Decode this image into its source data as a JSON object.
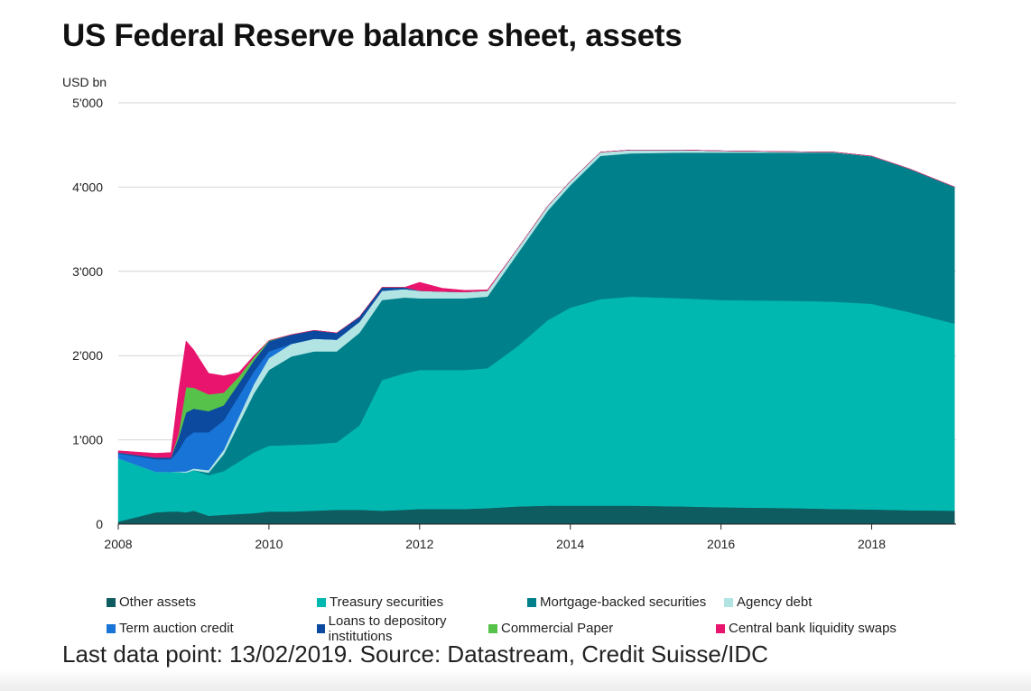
{
  "chart_data": {
    "type": "area",
    "stacked": true,
    "title": "US Federal Reserve balance sheet, assets",
    "ylabel": "USD bn",
    "xlabel": "",
    "ylim": [
      0,
      5000
    ],
    "xlim": [
      2008,
      2019.12
    ],
    "yticks": [
      0,
      1000,
      2000,
      3000,
      4000,
      5000
    ],
    "ytick_labels": [
      "0",
      "1'000",
      "2'000",
      "3'000",
      "4'000",
      "5'000"
    ],
    "xticks": [
      2008,
      2010,
      2012,
      2014,
      2016,
      2018
    ],
    "xtick_labels": [
      "2008",
      "2010",
      "2012",
      "2014",
      "2016",
      "2018"
    ],
    "grid": "horizontal",
    "legend_position": "bottom",
    "x": [
      2008.0,
      2008.5,
      2008.7,
      2008.8,
      2008.9,
      2009.0,
      2009.2,
      2009.4,
      2009.6,
      2009.8,
      2010.0,
      2010.3,
      2010.6,
      2010.9,
      2011.2,
      2011.5,
      2011.8,
      2012.0,
      2012.3,
      2012.6,
      2012.9,
      2013.3,
      2013.7,
      2014.0,
      2014.4,
      2014.8,
      2015.5,
      2016.0,
      2017.0,
      2017.5,
      2018.0,
      2018.5,
      2019.1
    ],
    "series": [
      {
        "name": "Other assets",
        "color": "#0e5c60",
        "values": [
          30,
          140,
          150,
          150,
          140,
          160,
          100,
          110,
          120,
          130,
          150,
          150,
          160,
          170,
          170,
          160,
          170,
          180,
          180,
          180,
          190,
          210,
          220,
          220,
          220,
          220,
          210,
          200,
          190,
          180,
          175,
          165,
          160
        ]
      },
      {
        "name": "Treasury securities",
        "color": "#00b8b0",
        "values": [
          750,
          480,
          470,
          470,
          470,
          480,
          480,
          520,
          620,
          720,
          780,
          790,
          790,
          800,
          1000,
          1550,
          1620,
          1650,
          1650,
          1650,
          1660,
          1900,
          2200,
          2350,
          2450,
          2480,
          2470,
          2460,
          2460,
          2460,
          2440,
          2350,
          2220
        ]
      },
      {
        "name": "Mortgage-backed securities",
        "color": "#00808a",
        "values": [
          0,
          0,
          0,
          0,
          0,
          0,
          30,
          200,
          450,
          700,
          900,
          1050,
          1100,
          1080,
          1100,
          950,
          900,
          850,
          850,
          850,
          850,
          1100,
          1300,
          1450,
          1700,
          1700,
          1730,
          1750,
          1760,
          1770,
          1750,
          1700,
          1620
        ]
      },
      {
        "name": "Agency debt",
        "color": "#b2e4e4",
        "values": [
          0,
          0,
          0,
          5,
          15,
          20,
          30,
          50,
          80,
          110,
          140,
          150,
          150,
          140,
          130,
          110,
          100,
          90,
          80,
          75,
          70,
          60,
          55,
          50,
          45,
          40,
          30,
          20,
          10,
          5,
          3,
          2,
          2
        ]
      },
      {
        "name": "Term auction credit",
        "color": "#1874d6",
        "values": [
          60,
          150,
          150,
          250,
          400,
          430,
          450,
          350,
          250,
          150,
          80,
          0,
          0,
          0,
          0,
          0,
          0,
          0,
          0,
          0,
          0,
          0,
          0,
          0,
          0,
          0,
          0,
          0,
          0,
          0,
          0,
          0,
          0
        ]
      },
      {
        "name": "Loans to depository institutions",
        "color": "#0b4a9e",
        "values": [
          10,
          20,
          20,
          150,
          300,
          280,
          250,
          180,
          150,
          130,
          120,
          110,
          100,
          80,
          60,
          40,
          20,
          0,
          0,
          0,
          0,
          0,
          0,
          0,
          0,
          0,
          0,
          0,
          0,
          0,
          0,
          0,
          0
        ]
      },
      {
        "name": "Commercial Paper",
        "color": "#57c24a",
        "values": [
          0,
          0,
          0,
          50,
          300,
          250,
          200,
          150,
          80,
          40,
          10,
          0,
          0,
          0,
          0,
          0,
          0,
          0,
          0,
          0,
          0,
          0,
          0,
          0,
          0,
          0,
          0,
          0,
          0,
          0,
          0,
          0,
          0
        ]
      },
      {
        "name": "Central bank liquidity swaps",
        "color": "#e8146e",
        "values": [
          20,
          50,
          60,
          500,
          550,
          450,
          250,
          200,
          50,
          20,
          0,
          0,
          0,
          0,
          0,
          0,
          0,
          100,
          40,
          20,
          10,
          0,
          0,
          0,
          0,
          0,
          0,
          0,
          0,
          0,
          0,
          0,
          0
        ]
      }
    ],
    "footnote": "Last data point: 13/02/2019. Source: Datastream, Credit Suisse/IDC"
  }
}
